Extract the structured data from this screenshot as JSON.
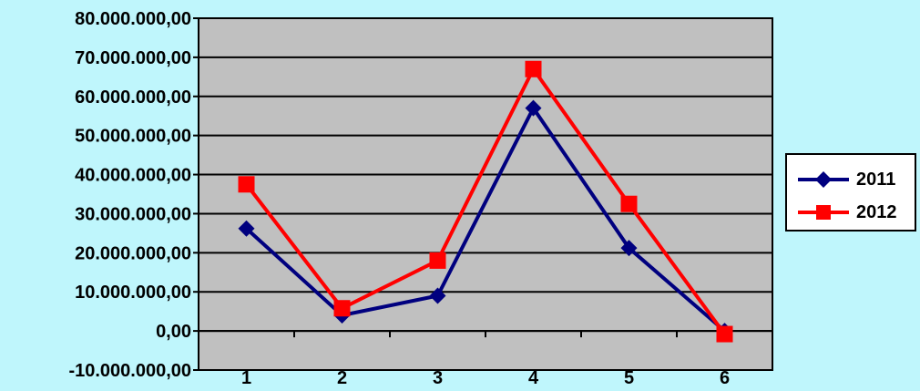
{
  "chart_data": {
    "type": "line",
    "title": "",
    "xlabel": "",
    "ylabel": "",
    "categories": [
      "1",
      "2",
      "3",
      "4",
      "5",
      "6"
    ],
    "ylim": [
      -10000000,
      80000000
    ],
    "y_ticks": [
      -10000000,
      0,
      10000000,
      20000000,
      30000000,
      40000000,
      50000000,
      60000000,
      70000000,
      80000000
    ],
    "y_tick_labels": [
      "-10.000.000,00",
      "0,00",
      "10.000.000,00",
      "20.000.000,00",
      "30.000.000,00",
      "40.000.000,00",
      "50.000.000,00",
      "60.000.000,00",
      "70.000.000,00",
      "80.000.000,00"
    ],
    "grid": true,
    "legend_position": "right",
    "plot_background": "#C0C0C0",
    "page_background": "#BFF6FC",
    "series": [
      {
        "name": "2011",
        "color": "#00007F",
        "marker": "diamond",
        "values": [
          26200000,
          4000000,
          9000000,
          57000000,
          21200000,
          0
        ]
      },
      {
        "name": "2012",
        "color": "#FF0000",
        "marker": "square",
        "values": [
          37500000,
          5800000,
          18000000,
          67000000,
          32500000,
          -800000
        ]
      }
    ]
  }
}
